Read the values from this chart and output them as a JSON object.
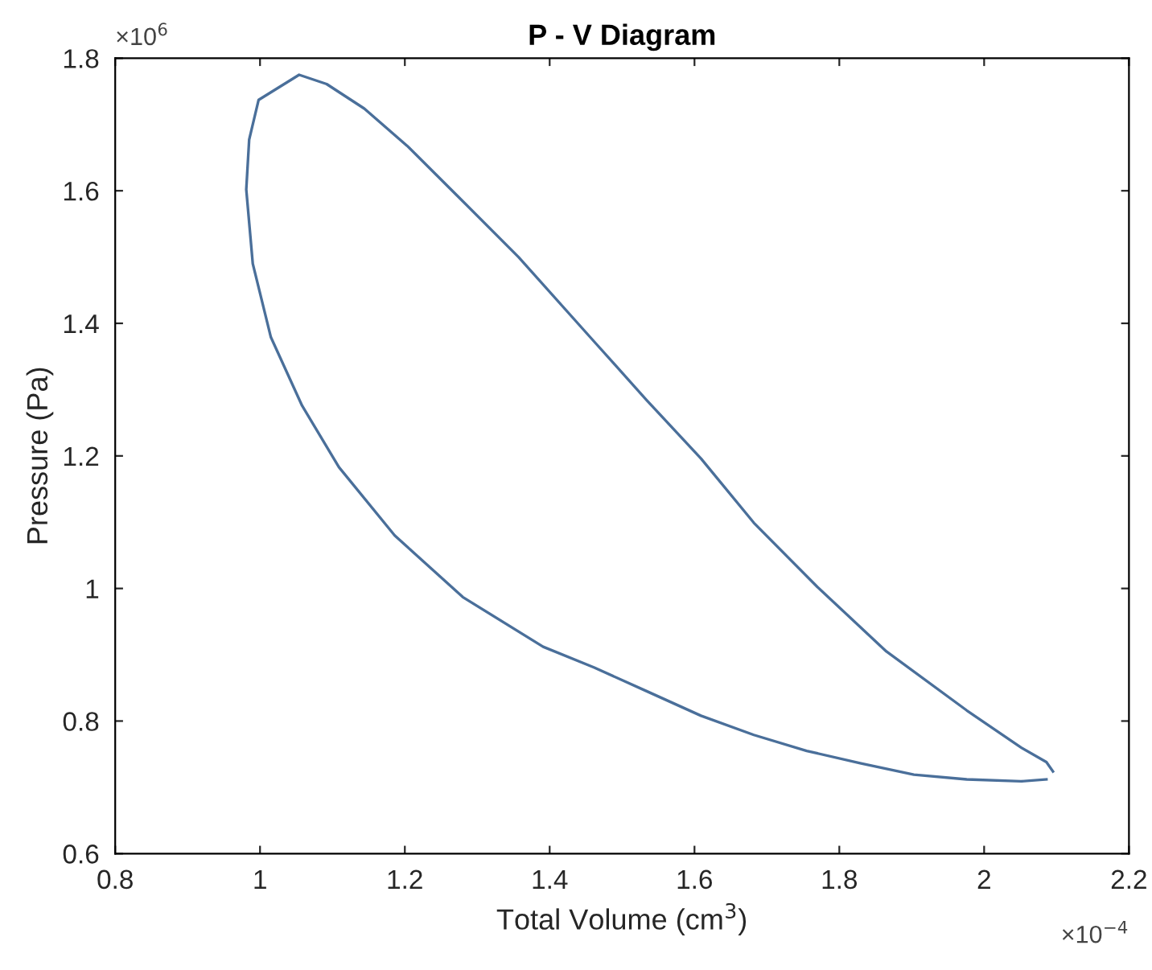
{
  "chart_data": {
    "type": "line",
    "title": "P - V Diagram",
    "xlabel": "Total Volume (cm$^{3}$)",
    "ylabel": "Pressure (Pa)",
    "annotations": [
      "×10$^{6}$",
      "×10$^{−4}$"
    ],
    "series": [
      {
        "color": "#4a6f9a",
        "x": [
          2.095,
          2.086,
          2.051,
          1.976,
          1.865,
          1.77,
          1.682,
          1.609,
          1.534,
          1.461,
          1.357,
          1.272,
          1.203,
          1.144,
          1.092,
          1.054,
          0.998,
          0.985,
          0.981,
          0.99,
          1.015,
          1.058,
          1.109,
          1.186,
          1.28,
          1.391,
          1.461,
          1.534,
          1.609,
          1.682,
          1.755,
          1.83,
          1.903,
          1.976,
          2.051,
          2.086
        ],
        "values": [
          0.724,
          0.738,
          0.76,
          0.816,
          0.905,
          1.002,
          1.099,
          1.196,
          1.284,
          1.373,
          1.5,
          1.593,
          1.668,
          1.724,
          1.761,
          1.775,
          1.737,
          1.677,
          1.602,
          1.49,
          1.379,
          1.276,
          1.183,
          1.08,
          0.987,
          0.912,
          0.881,
          0.845,
          0.808,
          0.779,
          0.755,
          0.736,
          0.719,
          0.712,
          0.709,
          0.712
        ]
      }
    ],
    "xlim": [
      0.8,
      2.2
    ],
    "ylim": [
      0.6,
      1.8
    ],
    "xticks": [
      0.8,
      1,
      1.2,
      1.4,
      1.6,
      1.8,
      2,
      2.2
    ],
    "yticks": [
      0.6,
      0.8,
      1,
      1.2,
      1.4,
      1.6,
      1.8
    ],
    "grid": false,
    "legend": false,
    "marker": "none",
    "line_style": "solid"
  }
}
